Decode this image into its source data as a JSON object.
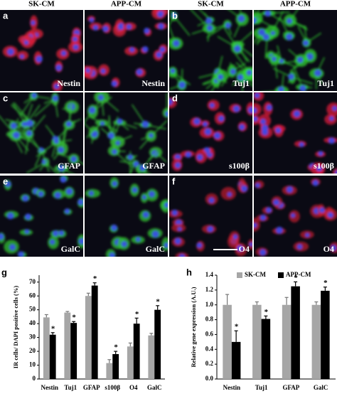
{
  "columns": [
    "SK-CM",
    "APP-CM",
    "SK-CM",
    "APP-CM"
  ],
  "panels": [
    {
      "label": "a",
      "stain": "Nestin"
    },
    {
      "label": "b",
      "stain": "Tuj1"
    },
    {
      "label": "c",
      "stain": "GFAP"
    },
    {
      "label": "d",
      "stain": "s100β"
    },
    {
      "label": "e",
      "stain": "GalC"
    },
    {
      "label": "f",
      "stain": "O4"
    }
  ],
  "chart_data": [
    {
      "type": "bar",
      "label": "g",
      "ylabel": "IR cells/ DAPI positive cells (%)",
      "categories": [
        "Nestin",
        "Tuj1",
        "GFAP",
        "s100β",
        "O4",
        "GalC"
      ],
      "series": [
        {
          "color": "#a6a6a6",
          "values": [
            44.5,
            48,
            60,
            11.5,
            23.5,
            31.5
          ],
          "errors": [
            2,
            0.8,
            2,
            2.5,
            2.5,
            1.5
          ]
        },
        {
          "color": "#000000",
          "values": [
            32,
            40.5,
            67.5,
            18,
            40,
            50
          ],
          "errors": [
            1.5,
            1,
            2,
            2,
            4,
            3
          ],
          "marker_labels": [
            "*",
            "*",
            "*",
            "*",
            "*",
            "*"
          ]
        }
      ],
      "ylim": [
        0,
        75
      ],
      "yticks": [
        0,
        10,
        20,
        30,
        40,
        50,
        60,
        70
      ]
    },
    {
      "type": "bar",
      "label": "h",
      "ylabel": "Relative gene expression (A.U.)",
      "categories": [
        "Nestin",
        "Tuj1",
        "GFAP",
        "GalC"
      ],
      "series": [
        {
          "name": "SK-CM",
          "color": "#a6a6a6",
          "values": [
            1.0,
            1.0,
            1.0,
            1.0
          ],
          "errors": [
            0.14,
            0.04,
            0.1,
            0.04
          ]
        },
        {
          "name": "APP-CM",
          "color": "#000000",
          "values": [
            0.5,
            0.81,
            1.25,
            1.19
          ],
          "errors": [
            0.15,
            0.04,
            0.06,
            0.05
          ],
          "marker_labels": [
            "*",
            "*",
            "*",
            "*"
          ]
        }
      ],
      "ylim": [
        0,
        1.4
      ],
      "yticks": [
        {
          "value": 0,
          "label": "0.0"
        },
        0.2,
        0.4,
        0.6,
        0.8,
        {
          "value": 1,
          "label": "1.0"
        },
        1.2,
        1.4
      ]
    }
  ]
}
